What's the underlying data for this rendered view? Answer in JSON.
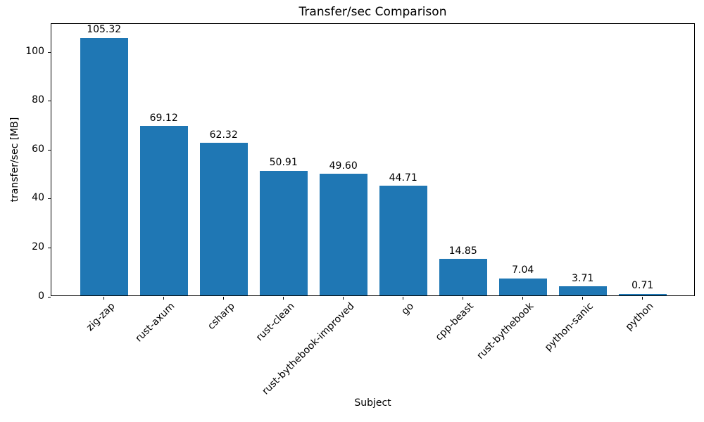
{
  "chart_data": {
    "type": "bar",
    "title": "Transfer/sec Comparison",
    "xlabel": "Subject",
    "ylabel": "transfer/sec [MB]",
    "categories": [
      "zig-zap",
      "rust-axum",
      "csharp",
      "rust-clean",
      "rust-bythebook-improved",
      "go",
      "cpp-beast",
      "rust-bythebook",
      "python-sanic",
      "python"
    ],
    "values": [
      105.32,
      69.12,
      62.32,
      50.91,
      49.6,
      44.71,
      14.85,
      7.04,
      3.71,
      0.71
    ],
    "value_labels": [
      "105.32",
      "69.12",
      "62.32",
      "50.91",
      "49.60",
      "44.71",
      "14.85",
      "7.04",
      "3.71",
      "0.71"
    ],
    "yticks": [
      0,
      20,
      40,
      60,
      80,
      100
    ],
    "ylim": [
      0,
      111.5
    ],
    "bar_color": "#1f77b4",
    "grid": false,
    "legend_position": "none"
  }
}
